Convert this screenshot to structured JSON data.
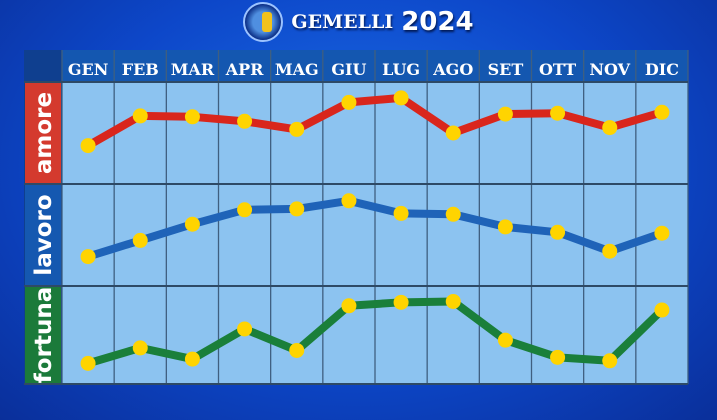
{
  "title": {
    "sign": "GEMELLI",
    "year": "2024"
  },
  "chart_data": {
    "type": "line",
    "categories": [
      "GEN",
      "FEB",
      "MAR",
      "APR",
      "MAG",
      "GIU",
      "LUG",
      "AGO",
      "SET",
      "OTT",
      "NOV",
      "DIC"
    ],
    "series": [
      {
        "name": "amore",
        "color": "#d9261c",
        "values": [
          36,
          69,
          68,
          63,
          54,
          84,
          89,
          50,
          71,
          72,
          56,
          73
        ]
      },
      {
        "name": "lavoro",
        "color": "#1f63b8",
        "values": [
          26,
          44,
          62,
          78,
          79,
          88,
          74,
          73,
          59,
          53,
          32,
          52
        ]
      },
      {
        "name": "fortuna",
        "color": "#1a7f3a",
        "values": [
          17,
          35,
          22,
          57,
          32,
          84,
          88,
          89,
          44,
          24,
          20,
          79
        ]
      }
    ],
    "ylim": [
      0,
      100
    ],
    "grid": true,
    "marker_color": "#ffd400",
    "label_colors": {
      "amore": "#d43a2e",
      "lavoro": "#1558b0",
      "fortuna": "#1b7a3a"
    }
  }
}
